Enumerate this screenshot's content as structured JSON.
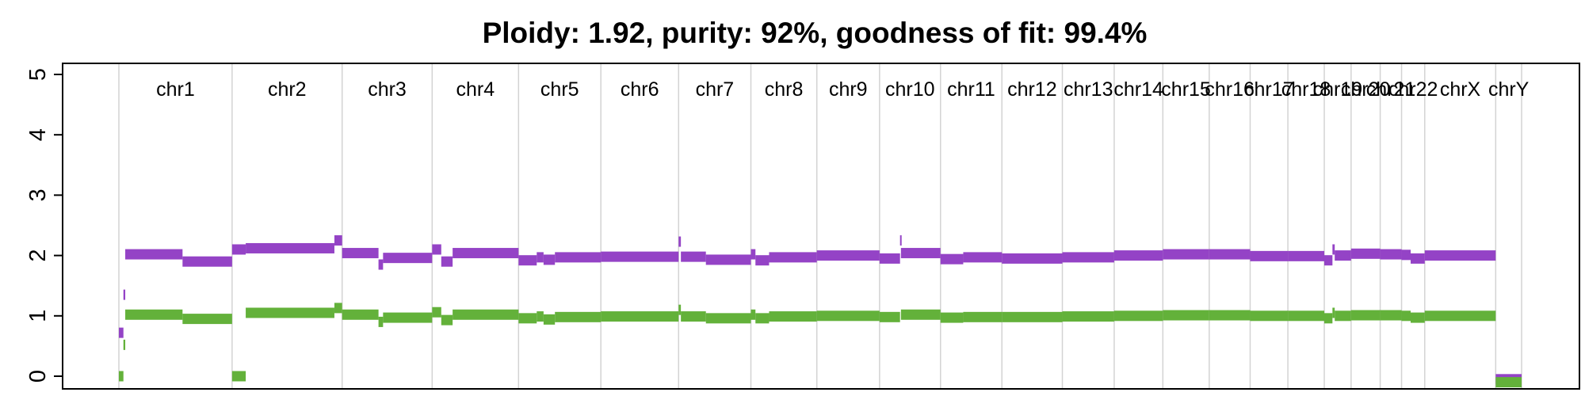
{
  "chart_data": {
    "type": "scatter",
    "title": "Ploidy: 1.92, purity: 92%, goodness of fit: 99.4%",
    "xlabel": "",
    "ylabel": "",
    "ylim": [
      0,
      5
    ],
    "yticks": [
      "0",
      "1",
      "2",
      "3",
      "4",
      "5"
    ],
    "grid": "vertical chromosome boundaries",
    "colors": {
      "total_copy_number": "#9443C6",
      "minor_allele": "#63B13A",
      "grid": "#d3d3d3",
      "frame": "#000000"
    },
    "chromosomes": [
      "chr1",
      "chr2",
      "chr3",
      "chr4",
      "chr5",
      "chr6",
      "chr7",
      "chr8",
      "chr9",
      "chr10",
      "chr11",
      "chr12",
      "chr13",
      "chr14",
      "chr15",
      "chr16",
      "chr17",
      "chr18",
      "chr19",
      "chr20",
      "chr21",
      "chr22",
      "chrX",
      "chrY"
    ],
    "chromosome_sizes_mb": [
      249,
      242,
      198,
      190,
      181,
      171,
      159,
      145,
      138,
      134,
      135,
      133,
      114,
      107,
      102,
      90,
      83,
      80,
      59,
      64,
      47,
      51,
      156,
      57
    ],
    "series": [
      {
        "key": "total_copy_number",
        "segments": [
          [
            1,
            0,
            10,
            0.72
          ],
          [
            1,
            10,
            14,
            1.35
          ],
          [
            1,
            14,
            140,
            2.02
          ],
          [
            1,
            140,
            249,
            1.9
          ],
          [
            2,
            0,
            30,
            2.1
          ],
          [
            2,
            30,
            225,
            2.12
          ],
          [
            2,
            225,
            242,
            2.25
          ],
          [
            3,
            0,
            80,
            2.04
          ],
          [
            3,
            80,
            90,
            1.85
          ],
          [
            3,
            90,
            198,
            1.96
          ],
          [
            4,
            0,
            20,
            2.1
          ],
          [
            4,
            20,
            45,
            1.9
          ],
          [
            4,
            45,
            190,
            2.04
          ],
          [
            5,
            0,
            40,
            1.92
          ],
          [
            5,
            40,
            55,
            1.97
          ],
          [
            5,
            55,
            80,
            1.93
          ],
          [
            5,
            80,
            181,
            1.97
          ],
          [
            6,
            0,
            171,
            1.98
          ],
          [
            7,
            0,
            5,
            2.23
          ],
          [
            7,
            5,
            60,
            1.98
          ],
          [
            7,
            60,
            159,
            1.93
          ],
          [
            8,
            0,
            10,
            2.02
          ],
          [
            8,
            10,
            40,
            1.92
          ],
          [
            8,
            40,
            145,
            1.97
          ],
          [
            9,
            0,
            138,
            2.0
          ],
          [
            10,
            0,
            45,
            1.95
          ],
          [
            10,
            45,
            47,
            2.25
          ],
          [
            10,
            47,
            134,
            2.04
          ],
          [
            11,
            0,
            50,
            1.94
          ],
          [
            11,
            50,
            135,
            1.97
          ],
          [
            12,
            0,
            133,
            1.95
          ],
          [
            13,
            0,
            114,
            1.97
          ],
          [
            14,
            0,
            107,
            2.0
          ],
          [
            15,
            0,
            102,
            2.02
          ],
          [
            16,
            0,
            90,
            2.02
          ],
          [
            17,
            0,
            83,
            1.99
          ],
          [
            18,
            0,
            80,
            1.99
          ],
          [
            19,
            0,
            18,
            1.92
          ],
          [
            19,
            18,
            23,
            2.1
          ],
          [
            19,
            23,
            59,
            2.0
          ],
          [
            20,
            0,
            64,
            2.03
          ],
          [
            21,
            0,
            47,
            2.02
          ],
          [
            22,
            0,
            20,
            2.01
          ],
          [
            22,
            20,
            51,
            1.95
          ],
          [
            23,
            0,
            156,
            2.0
          ],
          [
            24,
            0,
            57,
            -0.05
          ]
        ]
      },
      {
        "key": "minor_allele",
        "segments": [
          [
            1,
            0,
            10,
            0.0
          ],
          [
            1,
            10,
            14,
            0.52
          ],
          [
            1,
            14,
            140,
            1.02
          ],
          [
            1,
            140,
            249,
            0.95
          ],
          [
            2,
            0,
            30,
            0.0
          ],
          [
            2,
            30,
            225,
            1.05
          ],
          [
            2,
            225,
            242,
            1.13
          ],
          [
            3,
            0,
            80,
            1.02
          ],
          [
            3,
            80,
            90,
            0.9
          ],
          [
            3,
            90,
            198,
            0.97
          ],
          [
            4,
            0,
            20,
            1.06
          ],
          [
            4,
            20,
            45,
            0.93
          ],
          [
            4,
            45,
            190,
            1.02
          ],
          [
            5,
            0,
            40,
            0.96
          ],
          [
            5,
            40,
            55,
            0.99
          ],
          [
            5,
            55,
            80,
            0.94
          ],
          [
            5,
            80,
            181,
            0.98
          ],
          [
            6,
            0,
            171,
            0.99
          ],
          [
            7,
            0,
            5,
            1.1
          ],
          [
            7,
            5,
            60,
            0.99
          ],
          [
            7,
            60,
            159,
            0.96
          ],
          [
            8,
            0,
            10,
            1.02
          ],
          [
            8,
            10,
            40,
            0.96
          ],
          [
            8,
            40,
            145,
            0.99
          ],
          [
            9,
            0,
            138,
            1.0
          ],
          [
            10,
            0,
            45,
            0.98
          ],
          [
            10,
            47,
            134,
            1.02
          ],
          [
            11,
            0,
            50,
            0.97
          ],
          [
            11,
            50,
            135,
            0.98
          ],
          [
            12,
            0,
            133,
            0.98
          ],
          [
            13,
            0,
            114,
            0.99
          ],
          [
            14,
            0,
            107,
            1.0
          ],
          [
            15,
            0,
            102,
            1.01
          ],
          [
            16,
            0,
            90,
            1.01
          ],
          [
            17,
            0,
            83,
            1.0
          ],
          [
            18,
            0,
            80,
            1.0
          ],
          [
            19,
            0,
            18,
            0.96
          ],
          [
            19,
            18,
            23,
            1.05
          ],
          [
            19,
            23,
            59,
            1.0
          ],
          [
            20,
            0,
            64,
            1.01
          ],
          [
            21,
            0,
            47,
            1.01
          ],
          [
            22,
            0,
            20,
            1.0
          ],
          [
            22,
            20,
            51,
            0.97
          ],
          [
            23,
            0,
            156,
            1.0
          ],
          [
            24,
            0,
            57,
            -0.1
          ]
        ]
      }
    ]
  }
}
